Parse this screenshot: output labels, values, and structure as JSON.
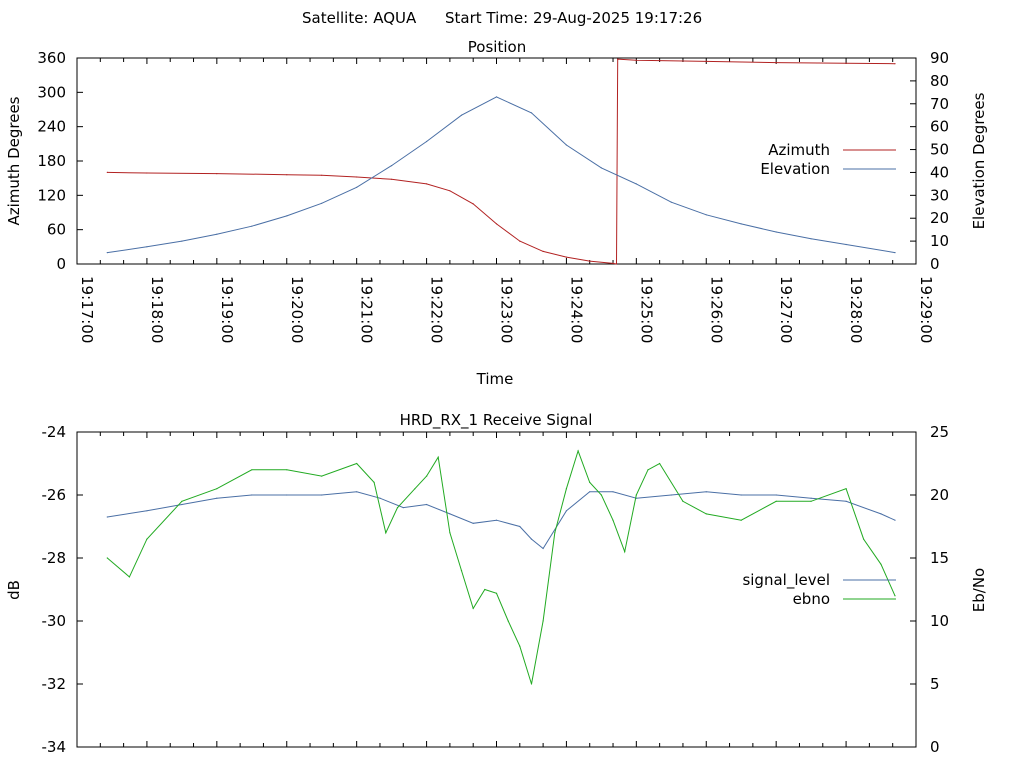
{
  "header": {
    "satellite": "Satellite: AQUA",
    "start_time": "Start Time: 29-Aug-2025 19:17:26"
  },
  "chart_data": [
    {
      "type": "line",
      "title": "Position",
      "xlabel": "Time",
      "ylabel": "Azimuth Degrees",
      "y2label": "Elevation Degrees",
      "x_ticks": [
        "19:17:00",
        "19:18:00",
        "19:19:00",
        "19:20:00",
        "19:21:00",
        "19:22:00",
        "19:23:00",
        "19:24:00",
        "19:25:00",
        "19:26:00",
        "19:27:00",
        "19:28:00",
        "19:29:00"
      ],
      "xlim": [
        "19:17:00",
        "19:29:00"
      ],
      "ylim": [
        0,
        360
      ],
      "yticks": [
        0,
        60,
        120,
        180,
        240,
        300,
        360
      ],
      "y2lim": [
        0,
        90
      ],
      "y2ticks": [
        0,
        10,
        20,
        30,
        40,
        50,
        60,
        70,
        80,
        90
      ],
      "legend_position": "right",
      "series": [
        {
          "name": "Azimuth",
          "axis": "left",
          "color": "#b22222",
          "x": [
            "19:17:26",
            "19:18:00",
            "19:19:00",
            "19:20:00",
            "19:20:30",
            "19:21:00",
            "19:21:30",
            "19:22:00",
            "19:22:20",
            "19:22:40",
            "19:23:00",
            "19:23:20",
            "19:23:40",
            "19:24:00",
            "19:24:20",
            "19:24:40",
            "19:24:43",
            "19:24:44",
            "19:25:00",
            "19:26:00",
            "19:27:00",
            "19:28:00",
            "19:28:42"
          ],
          "values": [
            160,
            159,
            158,
            156,
            155,
            152,
            148,
            140,
            128,
            105,
            70,
            40,
            22,
            12,
            5,
            1,
            0,
            358,
            356,
            354,
            352,
            351,
            350
          ]
        },
        {
          "name": "Elevation",
          "axis": "right",
          "color": "#4a6fa5",
          "x": [
            "19:17:26",
            "19:18:00",
            "19:18:30",
            "19:19:00",
            "19:19:30",
            "19:20:00",
            "19:20:30",
            "19:21:00",
            "19:21:30",
            "19:22:00",
            "19:22:30",
            "19:23:00",
            "19:23:30",
            "19:24:00",
            "19:24:30",
            "19:25:00",
            "19:25:30",
            "19:26:00",
            "19:26:30",
            "19:27:00",
            "19:27:30",
            "19:28:00",
            "19:28:42"
          ],
          "values": [
            5,
            7.5,
            10,
            13,
            16.5,
            21,
            26.5,
            33.5,
            43,
            53.5,
            65,
            73,
            66,
            52,
            42,
            35,
            27,
            21.5,
            17.5,
            14,
            11,
            8.5,
            5
          ]
        }
      ]
    },
    {
      "type": "line",
      "title": "HRD_RX_1 Receive Signal",
      "ylabel": "dB",
      "y2label": "Eb/No",
      "xlim": [
        "19:17:00",
        "19:29:00"
      ],
      "ylim": [
        -34,
        -24
      ],
      "yticks": [
        -34,
        -32,
        -30,
        -28,
        -26,
        -24
      ],
      "y2lim": [
        0,
        25
      ],
      "y2ticks": [
        0,
        5,
        10,
        15,
        20,
        25
      ],
      "legend_position": "right",
      "series": [
        {
          "name": "signal_level",
          "axis": "left",
          "color": "#4a6fa5",
          "x": [
            "19:17:26",
            "19:18:00",
            "19:18:30",
            "19:19:00",
            "19:19:30",
            "19:20:00",
            "19:20:30",
            "19:21:00",
            "19:21:20",
            "19:21:40",
            "19:22:00",
            "19:22:20",
            "19:22:40",
            "19:23:00",
            "19:23:20",
            "19:23:30",
            "19:23:40",
            "19:24:00",
            "19:24:20",
            "19:24:40",
            "19:25:00",
            "19:25:30",
            "19:26:00",
            "19:26:30",
            "19:27:00",
            "19:27:30",
            "19:28:00",
            "19:28:30",
            "19:28:42"
          ],
          "values": [
            -26.7,
            -26.5,
            -26.3,
            -26.1,
            -26.0,
            -26.0,
            -26.0,
            -25.9,
            -26.1,
            -26.4,
            -26.3,
            -26.6,
            -26.9,
            -26.8,
            -27.0,
            -27.4,
            -27.7,
            -26.5,
            -25.9,
            -25.9,
            -26.1,
            -26.0,
            -25.9,
            -26.0,
            -26.0,
            -26.1,
            -26.2,
            -26.6,
            -26.8
          ]
        },
        {
          "name": "ebno",
          "axis": "right",
          "color": "#22aa22",
          "x": [
            "19:17:26",
            "19:17:45",
            "19:18:00",
            "19:18:30",
            "19:19:00",
            "19:19:30",
            "19:20:00",
            "19:20:30",
            "19:21:00",
            "19:21:15",
            "19:21:25",
            "19:21:35",
            "19:21:50",
            "19:22:00",
            "19:22:10",
            "19:22:20",
            "19:22:30",
            "19:22:40",
            "19:22:50",
            "19:23:00",
            "19:23:10",
            "19:23:20",
            "19:23:30",
            "19:23:40",
            "19:23:50",
            "19:24:00",
            "19:24:10",
            "19:24:20",
            "19:24:30",
            "19:24:40",
            "19:24:50",
            "19:25:00",
            "19:25:10",
            "19:25:20",
            "19:25:40",
            "19:26:00",
            "19:26:30",
            "19:27:00",
            "19:27:30",
            "19:28:00",
            "19:28:15",
            "19:28:30",
            "19:28:42"
          ],
          "values": [
            15,
            13.5,
            16.5,
            19.5,
            20.5,
            22,
            22,
            21.5,
            22.5,
            21,
            17,
            19,
            20.5,
            21.5,
            23,
            17,
            14,
            11,
            12.5,
            12.2,
            10,
            8,
            5,
            10,
            17,
            20.5,
            23.5,
            21,
            20,
            18,
            15.5,
            20,
            22,
            22.5,
            19.5,
            18.5,
            18,
            19.5,
            19.5,
            20.5,
            16.5,
            14.5,
            12
          ]
        }
      ]
    }
  ]
}
